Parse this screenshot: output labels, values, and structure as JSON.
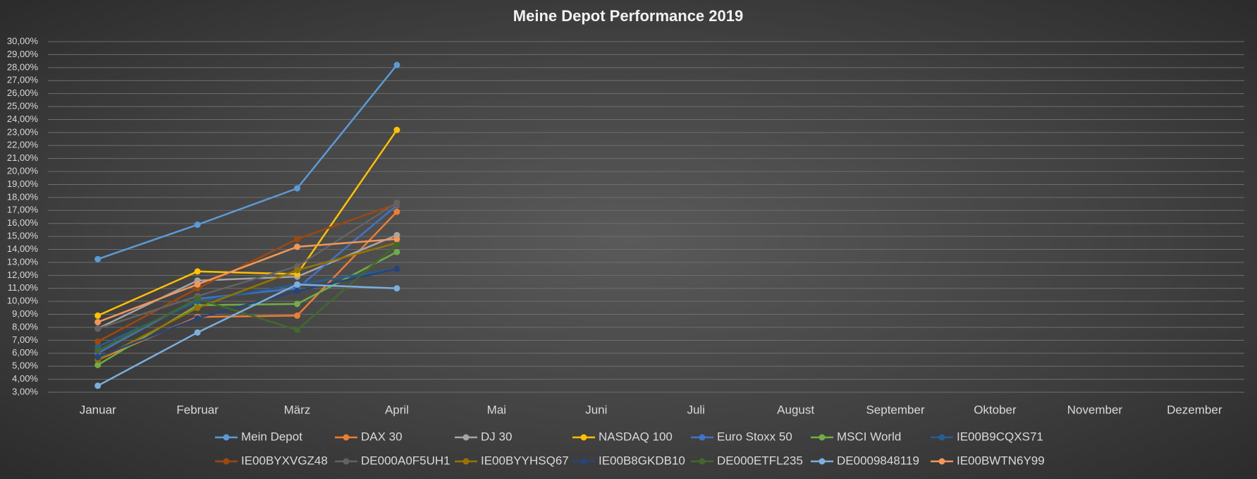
{
  "chart_data": {
    "type": "line",
    "title": "Meine Depot Performance 2019",
    "categories": [
      "Januar",
      "Februar",
      "März",
      "April",
      "Mai",
      "Juni",
      "Juli",
      "August",
      "September",
      "Oktober",
      "November",
      "Dezember"
    ],
    "ylim": [
      3,
      30
    ],
    "yticks": [
      {
        "value": 3,
        "label": "3,00%"
      },
      {
        "value": 4,
        "label": "4,00%"
      },
      {
        "value": 5,
        "label": "5,00%"
      },
      {
        "value": 6,
        "label": "6,00%"
      },
      {
        "value": 7,
        "label": "7,00%"
      },
      {
        "value": 8,
        "label": "8,00%"
      },
      {
        "value": 9,
        "label": "9,00%"
      },
      {
        "value": 10,
        "label": "10,00%"
      },
      {
        "value": 11,
        "label": "11,00%"
      },
      {
        "value": 12,
        "label": "12,00%"
      },
      {
        "value": 13,
        "label": "13,00%"
      },
      {
        "value": 14,
        "label": "14,00%"
      },
      {
        "value": 15,
        "label": "15,00%"
      },
      {
        "value": 16,
        "label": "16,00%"
      },
      {
        "value": 17,
        "label": "17,00%"
      },
      {
        "value": 18,
        "label": "18,00%"
      },
      {
        "value": 19,
        "label": "19,00%"
      },
      {
        "value": 20,
        "label": "20,00%"
      },
      {
        "value": 21,
        "label": "21,00%"
      },
      {
        "value": 22,
        "label": "22,00%"
      },
      {
        "value": 23,
        "label": "23,00%"
      },
      {
        "value": 24,
        "label": "24,00%"
      },
      {
        "value": 25,
        "label": "25,00%"
      },
      {
        "value": 26,
        "label": "26,00%"
      },
      {
        "value": 27,
        "label": "27,00%"
      },
      {
        "value": 28,
        "label": "28,00%"
      },
      {
        "value": 29,
        "label": "29,00%"
      },
      {
        "value": 30,
        "label": "30,00%"
      }
    ],
    "grid": true,
    "legend": "bottom",
    "series": [
      {
        "name": "Mein Depot",
        "color": "#5b9bd5",
        "values": [
          13.25,
          15.9,
          18.7,
          28.2,
          null,
          null,
          null,
          null,
          null,
          null,
          null,
          null
        ]
      },
      {
        "name": "DAX 30",
        "color": "#ed7d31",
        "values": [
          5.5,
          8.8,
          8.9,
          16.9,
          null,
          null,
          null,
          null,
          null,
          null,
          null,
          null
        ]
      },
      {
        "name": "DJ 30",
        "color": "#a5a5a5",
        "values": [
          7.9,
          11.6,
          11.9,
          15.1,
          null,
          null,
          null,
          null,
          null,
          null,
          null,
          null
        ]
      },
      {
        "name": "NASDAQ 100",
        "color": "#ffc000",
        "values": [
          8.9,
          12.3,
          12.1,
          23.2,
          null,
          null,
          null,
          null,
          null,
          null,
          null,
          null
        ]
      },
      {
        "name": "Euro Stoxx 50",
        "color": "#4472c4",
        "values": [
          6.0,
          10.2,
          11.0,
          17.4,
          null,
          null,
          null,
          null,
          null,
          null,
          null,
          null
        ]
      },
      {
        "name": "MSCI World",
        "color": "#70ad47",
        "values": [
          5.1,
          9.7,
          9.8,
          13.8,
          null,
          null,
          null,
          null,
          null,
          null,
          null,
          null
        ]
      },
      {
        "name": "IE00B9CQXS71",
        "color": "#255e91",
        "values": [
          6.5,
          10.0,
          11.3,
          12.5,
          null,
          null,
          null,
          null,
          null,
          null,
          null,
          null
        ]
      },
      {
        "name": "IE00BYXVGZ48",
        "color": "#9e480e",
        "values": [
          6.9,
          11.0,
          14.8,
          17.5,
          null,
          null,
          null,
          null,
          null,
          null,
          null,
          null
        ]
      },
      {
        "name": "DE000A0F5UH1",
        "color": "#636363",
        "values": [
          7.9,
          10.4,
          12.7,
          17.6,
          null,
          null,
          null,
          null,
          null,
          null,
          null,
          null
        ]
      },
      {
        "name": "IE00BYYHSQ67",
        "color": "#997300",
        "values": [
          5.5,
          9.5,
          12.4,
          14.5,
          null,
          null,
          null,
          null,
          null,
          null,
          null,
          null
        ]
      },
      {
        "name": "IE00B8GKDB10",
        "color": "#264478",
        "values": [
          5.7,
          8.7,
          10.8,
          12.5,
          null,
          null,
          null,
          null,
          null,
          null,
          null,
          null
        ]
      },
      {
        "name": "DE000ETFL235",
        "color": "#43682b",
        "values": [
          6.2,
          10.2,
          7.8,
          14.4,
          null,
          null,
          null,
          null,
          null,
          null,
          null,
          null
        ]
      },
      {
        "name": "DE0009848119",
        "color": "#7cafdd",
        "values": [
          3.5,
          7.6,
          11.3,
          11.0,
          null,
          null,
          null,
          null,
          null,
          null,
          null,
          null
        ]
      },
      {
        "name": "IE00BWTN6Y99",
        "color": "#f1975a",
        "values": [
          8.4,
          11.3,
          14.2,
          14.8,
          null,
          null,
          null,
          null,
          null,
          null,
          null,
          null
        ]
      }
    ]
  }
}
